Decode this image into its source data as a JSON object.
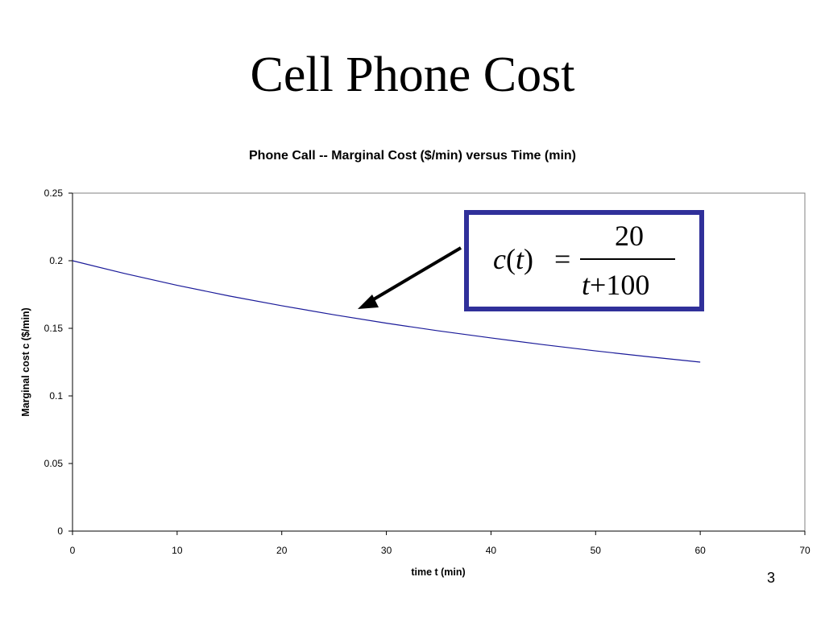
{
  "slide": {
    "title": "Cell Phone Cost",
    "page_number": "3"
  },
  "equation": {
    "lhs_func": "c",
    "lhs_var": "t",
    "equals": "=",
    "numerator": "20",
    "denominator_var": "t",
    "denominator_rest": "+100"
  },
  "colors": {
    "series_line": "#1a1a99",
    "equation_border": "#30309a",
    "arrow": "#000000",
    "plot_border": "#808080"
  },
  "chart_data": {
    "type": "line",
    "title": "Phone Call -- Marginal Cost ($/min) versus Time (min)",
    "xlabel": "time t (min)",
    "ylabel": "Marginal cost c ($/min)",
    "xlim": [
      0,
      70
    ],
    "ylim": [
      0,
      0.25
    ],
    "xticks": [
      0,
      10,
      20,
      30,
      40,
      50,
      60,
      70
    ],
    "yticks": [
      0,
      0.05,
      0.1,
      0.15,
      0.2,
      0.25
    ],
    "xtick_labels": [
      "0",
      "10",
      "20",
      "30",
      "40",
      "50",
      "60",
      "70"
    ],
    "ytick_labels": [
      "0",
      "0.05",
      "0.1",
      "0.15",
      "0.2",
      "0.25"
    ],
    "grid": false,
    "legend": false,
    "series": [
      {
        "x": [
          0,
          5,
          10,
          15,
          20,
          25,
          30,
          35,
          40,
          45,
          50,
          55,
          60
        ],
        "y": [
          0.2,
          0.1905,
          0.1818,
          0.1739,
          0.1667,
          0.16,
          0.1538,
          0.1481,
          0.1429,
          0.1379,
          0.1333,
          0.129,
          0.125
        ]
      }
    ]
  }
}
